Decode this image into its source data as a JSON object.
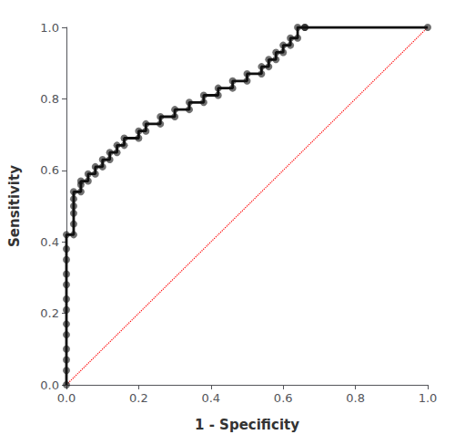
{
  "chart_data": {
    "type": "line",
    "xlabel": "1 - Specificity",
    "ylabel": "Sensitivity",
    "xlim": [
      0.0,
      1.0
    ],
    "ylim": [
      0.0,
      1.0
    ],
    "xticks": [
      {
        "value": 0.0,
        "label": "0.0"
      },
      0.2,
      0.4,
      0.6,
      0.8,
      {
        "value": 1.0,
        "label": "1.0"
      }
    ],
    "yticks": [
      {
        "value": 0.0,
        "label": "0.0"
      },
      0.2,
      0.4,
      0.6,
      0.8,
      {
        "value": 1.0,
        "label": "1.0"
      }
    ],
    "grid": false,
    "series": [
      {
        "type": "line",
        "x": [
          0,
          1
        ],
        "values": [
          0,
          1
        ],
        "color": "red",
        "line_style": "dotted"
      },
      {
        "type": "line",
        "color": "#111111",
        "marker": "circle",
        "x": [
          0.0,
          0.0,
          0.0,
          0.0,
          0.0,
          0.0,
          0.0,
          0.0,
          0.0,
          0.0,
          0.0,
          0.0,
          0.0,
          0.02,
          0.02,
          0.02,
          0.02,
          0.02,
          0.02,
          0.04,
          0.04,
          0.04,
          0.06,
          0.06,
          0.08,
          0.08,
          0.1,
          0.1,
          0.12,
          0.12,
          0.14,
          0.14,
          0.16,
          0.16,
          0.2,
          0.2,
          0.22,
          0.22,
          0.26,
          0.26,
          0.3,
          0.3,
          0.34,
          0.34,
          0.38,
          0.38,
          0.42,
          0.42,
          0.46,
          0.46,
          0.5,
          0.5,
          0.54,
          0.54,
          0.56,
          0.56,
          0.58,
          0.58,
          0.6,
          0.6,
          0.62,
          0.62,
          0.64,
          0.64,
          0.66,
          0.66,
          1.0
        ],
        "values": [
          0.0,
          0.04,
          0.07,
          0.1,
          0.14,
          0.17,
          0.21,
          0.24,
          0.28,
          0.31,
          0.35,
          0.38,
          0.42,
          0.42,
          0.45,
          0.48,
          0.5,
          0.52,
          0.54,
          0.54,
          0.56,
          0.57,
          0.57,
          0.59,
          0.59,
          0.61,
          0.61,
          0.63,
          0.63,
          0.65,
          0.65,
          0.67,
          0.67,
          0.69,
          0.69,
          0.71,
          0.71,
          0.73,
          0.73,
          0.75,
          0.75,
          0.77,
          0.77,
          0.79,
          0.79,
          0.81,
          0.81,
          0.83,
          0.83,
          0.85,
          0.85,
          0.87,
          0.87,
          0.89,
          0.89,
          0.91,
          0.91,
          0.93,
          0.93,
          0.95,
          0.95,
          0.97,
          0.97,
          1.0,
          1.0,
          1.0,
          1.0
        ]
      }
    ]
  }
}
